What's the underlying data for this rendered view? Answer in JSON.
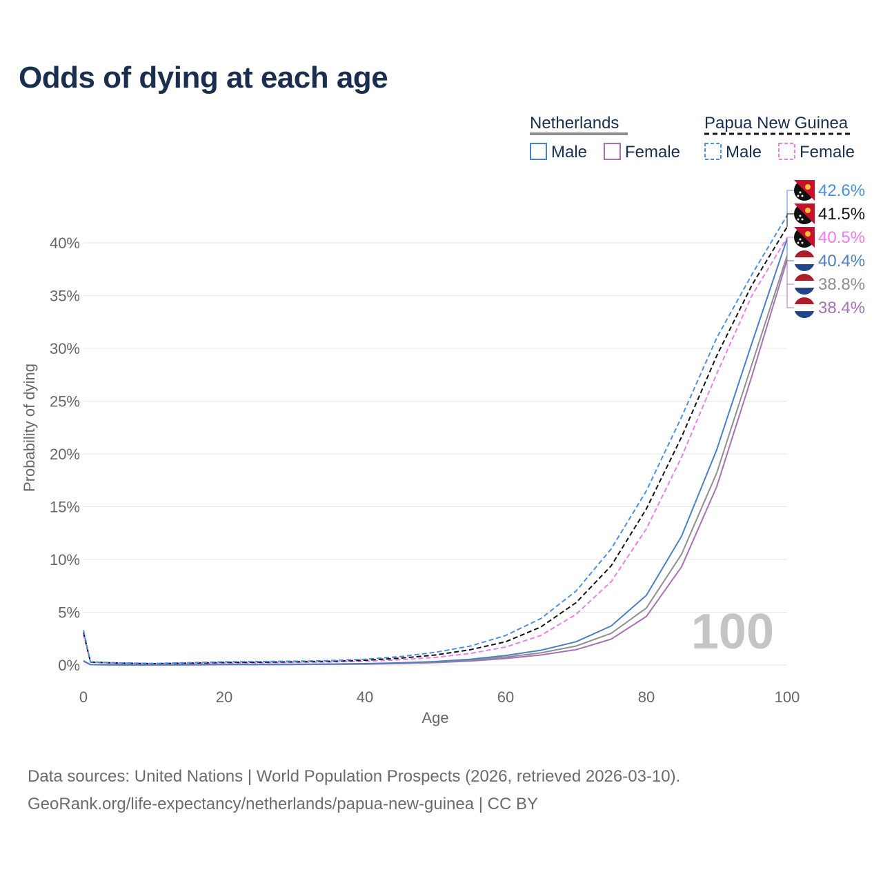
{
  "title": "Odds of dying at each age",
  "source": {
    "line1": "Data sources: United Nations | World Population Prospects (2026, retrieved 2026-03-10).",
    "line2": "GeoRank.org/life-expectancy/netherlands/papua-new-guinea | CC BY"
  },
  "legend": {
    "group1": "Netherlands",
    "group2": "Papua New Guinea",
    "male": "Male",
    "female": "Female"
  },
  "watermark": "100",
  "colors": {
    "nl_male": "#4a7fc1",
    "nl_female": "#a86fb5",
    "nl_total": "#8e8e8e",
    "png_male": "#4a90e2",
    "png_female": "#f07ce8",
    "png_total": "#111111",
    "title": "#1a2e4f",
    "grid": "#e6e6e6"
  },
  "chart_data": {
    "type": "line",
    "title": "Odds of dying at each age",
    "xlabel": "Age",
    "ylabel": "Probability of dying",
    "xlim": [
      0,
      100
    ],
    "ylim": [
      0,
      42
    ],
    "x_ticks": [
      "0",
      "20",
      "40",
      "60",
      "80",
      "100"
    ],
    "y_ticks": [
      "0%",
      "5%",
      "10%",
      "15%",
      "20%",
      "25%",
      "30%",
      "35%",
      "40%"
    ],
    "x": [
      0,
      1,
      5,
      10,
      15,
      20,
      25,
      30,
      35,
      40,
      45,
      50,
      55,
      60,
      65,
      70,
      75,
      80,
      85,
      90,
      95,
      100
    ],
    "series": [
      {
        "name": "Papua New Guinea Male",
        "key": "png_male",
        "dashed": true,
        "end_label": "42.6%",
        "values": [
          3.3,
          0.3,
          0.2,
          0.15,
          0.22,
          0.3,
          0.33,
          0.36,
          0.42,
          0.55,
          0.8,
          1.2,
          1.8,
          2.8,
          4.4,
          7.0,
          11.0,
          16.5,
          23.5,
          31.0,
          37.0,
          42.6
        ]
      },
      {
        "name": "Papua New Guinea Total",
        "key": "png_total",
        "dashed": true,
        "end_label": "41.5%",
        "values": [
          3.1,
          0.28,
          0.18,
          0.13,
          0.18,
          0.24,
          0.27,
          0.3,
          0.35,
          0.45,
          0.65,
          0.95,
          1.45,
          2.2,
          3.6,
          5.9,
          9.4,
          14.8,
          21.6,
          29.3,
          36.0,
          41.5
        ]
      },
      {
        "name": "Papua New Guinea Female",
        "key": "png_female",
        "dashed": true,
        "end_label": "40.5%",
        "values": [
          2.9,
          0.26,
          0.16,
          0.11,
          0.14,
          0.18,
          0.21,
          0.24,
          0.28,
          0.35,
          0.5,
          0.72,
          1.1,
          1.7,
          2.8,
          4.8,
          7.9,
          12.9,
          19.7,
          27.6,
          35.0,
          40.5
        ]
      },
      {
        "name": "Netherlands Male",
        "key": "nl_male",
        "dashed": false,
        "end_label": "40.4%",
        "values": [
          0.4,
          0.03,
          0.01,
          0.01,
          0.03,
          0.05,
          0.06,
          0.07,
          0.09,
          0.13,
          0.2,
          0.33,
          0.55,
          0.9,
          1.4,
          2.2,
          3.7,
          6.6,
          12.2,
          20.4,
          30.5,
          40.4
        ]
      },
      {
        "name": "Netherlands Total",
        "key": "nl_total",
        "dashed": false,
        "end_label": "38.8%",
        "values": [
          0.38,
          0.03,
          0.01,
          0.01,
          0.02,
          0.04,
          0.05,
          0.06,
          0.08,
          0.11,
          0.17,
          0.28,
          0.46,
          0.75,
          1.15,
          1.8,
          3.0,
          5.4,
          10.5,
          18.2,
          28.5,
          38.8
        ]
      },
      {
        "name": "Netherlands Female",
        "key": "nl_female",
        "dashed": false,
        "end_label": "38.4%",
        "values": [
          0.35,
          0.03,
          0.01,
          0.01,
          0.02,
          0.03,
          0.04,
          0.05,
          0.07,
          0.09,
          0.14,
          0.23,
          0.38,
          0.62,
          0.95,
          1.45,
          2.45,
          4.6,
          9.3,
          16.9,
          27.4,
          38.4
        ]
      }
    ]
  }
}
